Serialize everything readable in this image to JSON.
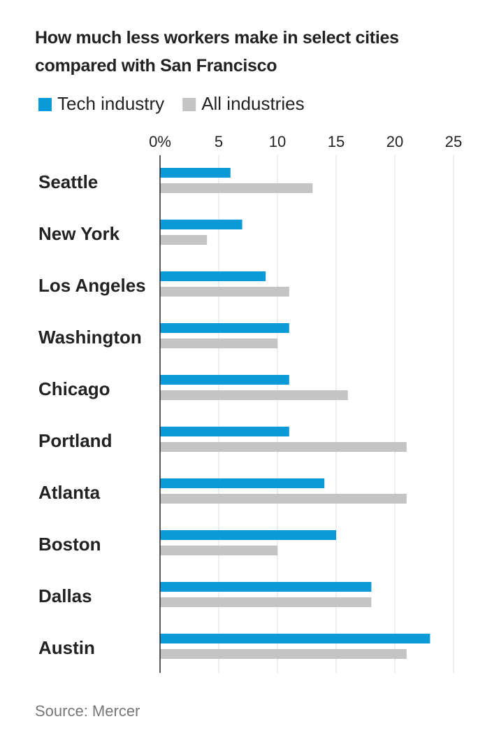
{
  "chart_data": {
    "type": "hbar",
    "title": "How much less workers make in select cities compared with San Francisco",
    "categories": [
      "Seattle",
      "New York",
      "Los Angeles",
      "Washington",
      "Chicago",
      "Portland",
      "Atlanta",
      "Boston",
      "Dallas",
      "Austin"
    ],
    "series": [
      {
        "name": "Tech industry",
        "color": "#0a9ad8",
        "values": [
          6,
          7,
          9,
          11,
          11,
          11,
          14,
          15,
          18,
          23
        ]
      },
      {
        "name": "All industries",
        "color": "#c4c4c4",
        "values": [
          13,
          4,
          11,
          10,
          16,
          21,
          21,
          10,
          18,
          21
        ]
      }
    ],
    "xlim": [
      0,
      25
    ],
    "xticks": [
      {
        "value": 0,
        "label": "0%"
      },
      5,
      10,
      15,
      20,
      25
    ],
    "grid": true,
    "source": "Source: Mercer"
  }
}
